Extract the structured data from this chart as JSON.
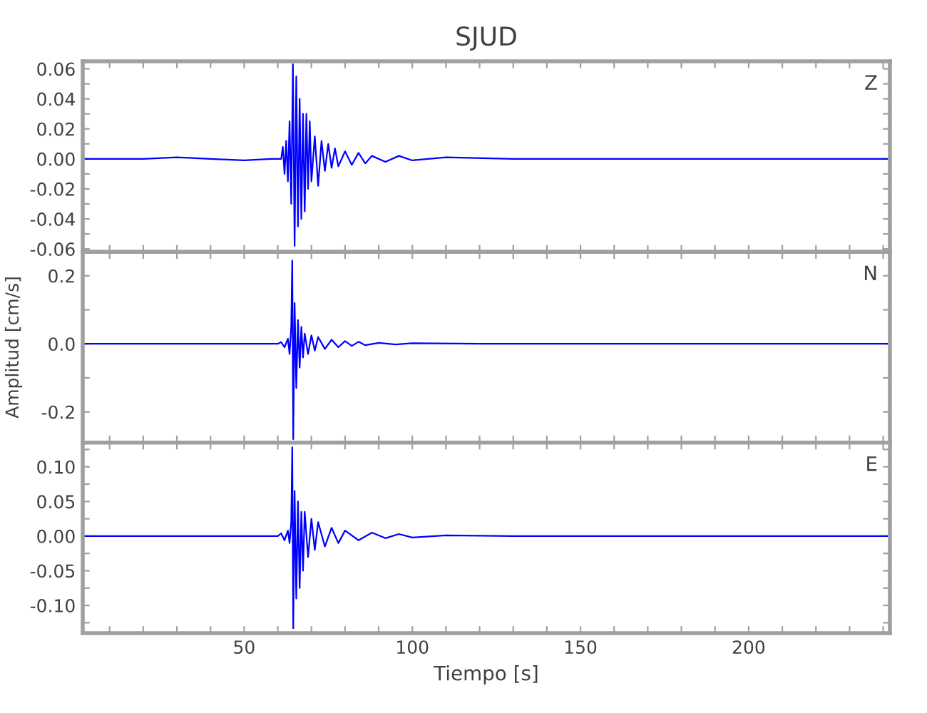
{
  "chart_data": [
    {
      "type": "line",
      "title": "SJUD",
      "annotations": [
        "Z"
      ],
      "tick_labels": "y",
      "grid": false,
      "legend": false,
      "xlim": [
        2,
        242
      ],
      "ylim": [
        -0.062,
        0.065
      ],
      "xticks": [
        {
          "value": 10,
          "label": null
        },
        {
          "value": 20,
          "label": null
        },
        {
          "value": 30,
          "label": null
        },
        {
          "value": 40,
          "label": null
        },
        {
          "value": 50,
          "label": null
        },
        {
          "value": 60,
          "label": null
        },
        {
          "value": 70,
          "label": null
        },
        {
          "value": 80,
          "label": null
        },
        {
          "value": 90,
          "label": null
        },
        {
          "value": 100,
          "label": null
        },
        {
          "value": 110,
          "label": null
        },
        {
          "value": 120,
          "label": null
        },
        {
          "value": 130,
          "label": null
        },
        {
          "value": 140,
          "label": null
        },
        {
          "value": 150,
          "label": null
        },
        {
          "value": 160,
          "label": null
        },
        {
          "value": 170,
          "label": null
        },
        {
          "value": 180,
          "label": null
        },
        {
          "value": 190,
          "label": null
        },
        {
          "value": 200,
          "label": null
        },
        {
          "value": 210,
          "label": null
        },
        {
          "value": 220,
          "label": null
        },
        {
          "value": 230,
          "label": null
        },
        {
          "value": 240,
          "label": null
        }
      ],
      "yticks": [
        {
          "value": -0.06,
          "label": "-0.06"
        },
        {
          "value": -0.05,
          "label": null
        },
        {
          "value": -0.04,
          "label": "-0.04"
        },
        {
          "value": -0.03,
          "label": null
        },
        {
          "value": -0.02,
          "label": "-0.02"
        },
        {
          "value": -0.01,
          "label": null
        },
        {
          "value": 0,
          "label": "0.00"
        },
        {
          "value": 0.01,
          "label": null
        },
        {
          "value": 0.02,
          "label": "0.02"
        },
        {
          "value": 0.03,
          "label": null
        },
        {
          "value": 0.04,
          "label": "0.04"
        },
        {
          "value": 0.05,
          "label": null
        },
        {
          "value": 0.06,
          "label": "0.06"
        }
      ],
      "series": [
        {
          "color": "#0000ff",
          "x": [
            2,
            10,
            20,
            30,
            40,
            50,
            58,
            61,
            61.5,
            62,
            62.5,
            63,
            63.5,
            64,
            64.5,
            65,
            65.5,
            66,
            66.5,
            67,
            67.5,
            68,
            68.5,
            69,
            69.5,
            70,
            71,
            72,
            73,
            74,
            75,
            76,
            77,
            78,
            80,
            82,
            84,
            86,
            88,
            92,
            96,
            100,
            110,
            130,
            150,
            200,
            242
          ],
          "values": [
            0,
            0,
            0,
            0.001,
            0,
            -0.001,
            0,
            0,
            0.008,
            -0.01,
            0.012,
            -0.015,
            0.025,
            -0.03,
            0.063,
            -0.058,
            0.055,
            -0.045,
            0.04,
            -0.04,
            0.03,
            -0.035,
            0.03,
            -0.02,
            0.025,
            -0.015,
            0.015,
            -0.018,
            0.012,
            -0.008,
            0.01,
            -0.006,
            0.007,
            -0.005,
            0.005,
            -0.004,
            0.004,
            -0.003,
            0.002,
            -0.002,
            0.002,
            -0.001,
            0.001,
            0,
            0,
            0,
            0
          ]
        }
      ]
    },
    {
      "type": "line",
      "ylabel": "Amplitud [cm/s]",
      "annotations": [
        "N"
      ],
      "tick_labels": "y",
      "grid": false,
      "legend": false,
      "xlim": [
        2,
        242
      ],
      "ylim": [
        -0.29,
        0.27
      ],
      "xticks": [
        {
          "value": 10,
          "label": null
        },
        {
          "value": 20,
          "label": null
        },
        {
          "value": 30,
          "label": null
        },
        {
          "value": 40,
          "label": null
        },
        {
          "value": 50,
          "label": null
        },
        {
          "value": 60,
          "label": null
        },
        {
          "value": 70,
          "label": null
        },
        {
          "value": 80,
          "label": null
        },
        {
          "value": 90,
          "label": null
        },
        {
          "value": 100,
          "label": null
        },
        {
          "value": 110,
          "label": null
        },
        {
          "value": 120,
          "label": null
        },
        {
          "value": 130,
          "label": null
        },
        {
          "value": 140,
          "label": null
        },
        {
          "value": 150,
          "label": null
        },
        {
          "value": 160,
          "label": null
        },
        {
          "value": 170,
          "label": null
        },
        {
          "value": 180,
          "label": null
        },
        {
          "value": 190,
          "label": null
        },
        {
          "value": 200,
          "label": null
        },
        {
          "value": 210,
          "label": null
        },
        {
          "value": 220,
          "label": null
        },
        {
          "value": 230,
          "label": null
        },
        {
          "value": 240,
          "label": null
        }
      ],
      "yticks": [
        {
          "value": -0.2,
          "label": "-0.2"
        },
        {
          "value": -0.1,
          "label": null
        },
        {
          "value": 0,
          "label": "0.0"
        },
        {
          "value": 0.1,
          "label": null
        },
        {
          "value": 0.2,
          "label": "0.2"
        }
      ],
      "series": [
        {
          "color": "#0000ff",
          "x": [
            2,
            30,
            60,
            61,
            62,
            63,
            63.5,
            64,
            64.3,
            64.6,
            65,
            65.5,
            66,
            66.5,
            67,
            67.5,
            68,
            69,
            70,
            71,
            72,
            74,
            76,
            78,
            80,
            82,
            84,
            86,
            90,
            95,
            100,
            120,
            242
          ],
          "values": [
            0,
            0,
            0,
            0.005,
            -0.01,
            0.015,
            -0.03,
            0.05,
            0.245,
            -0.28,
            0.12,
            -0.13,
            0.07,
            -0.07,
            0.05,
            -0.04,
            0.03,
            -0.03,
            0.025,
            -0.02,
            0.02,
            -0.015,
            0.012,
            -0.01,
            0.008,
            -0.006,
            0.006,
            -0.004,
            0.003,
            -0.002,
            0.002,
            0,
            0
          ]
        }
      ]
    },
    {
      "type": "line",
      "xlabel": "Tiempo [s]",
      "annotations": [
        "E"
      ],
      "grid": false,
      "legend": false,
      "xlim": [
        2,
        242
      ],
      "ylim": [
        -0.14,
        0.135
      ],
      "xticks": [
        {
          "value": 10,
          "label": null
        },
        {
          "value": 20,
          "label": null
        },
        {
          "value": 30,
          "label": null
        },
        {
          "value": 40,
          "label": null
        },
        {
          "value": 50,
          "label": "50"
        },
        {
          "value": 60,
          "label": null
        },
        {
          "value": 70,
          "label": null
        },
        {
          "value": 80,
          "label": null
        },
        {
          "value": 90,
          "label": null
        },
        {
          "value": 100,
          "label": "100"
        },
        {
          "value": 110,
          "label": null
        },
        {
          "value": 120,
          "label": null
        },
        {
          "value": 130,
          "label": null
        },
        {
          "value": 140,
          "label": null
        },
        {
          "value": 150,
          "label": "150"
        },
        {
          "value": 160,
          "label": null
        },
        {
          "value": 170,
          "label": null
        },
        {
          "value": 180,
          "label": null
        },
        {
          "value": 190,
          "label": null
        },
        {
          "value": 200,
          "label": "200"
        },
        {
          "value": 210,
          "label": null
        },
        {
          "value": 220,
          "label": null
        },
        {
          "value": 230,
          "label": null
        },
        {
          "value": 240,
          "label": null
        }
      ],
      "yticks": [
        {
          "value": -0.125,
          "label": null
        },
        {
          "value": -0.1,
          "label": "-0.10"
        },
        {
          "value": -0.075,
          "label": null
        },
        {
          "value": -0.05,
          "label": "-0.05"
        },
        {
          "value": -0.025,
          "label": null
        },
        {
          "value": 0,
          "label": "0.00"
        },
        {
          "value": 0.025,
          "label": null
        },
        {
          "value": 0.05,
          "label": "0.05"
        },
        {
          "value": 0.075,
          "label": null
        },
        {
          "value": 0.1,
          "label": "0.10"
        },
        {
          "value": 0.125,
          "label": null
        }
      ],
      "series": [
        {
          "color": "#0000ff",
          "x": [
            2,
            30,
            60,
            61,
            62,
            63,
            63.5,
            64,
            64.3,
            64.6,
            65,
            65.5,
            66,
            66.5,
            67,
            67.5,
            68,
            69,
            70,
            71,
            72,
            74,
            76,
            78,
            80,
            84,
            88,
            92,
            96,
            100,
            110,
            130,
            242
          ],
          "values": [
            0,
            0,
            0,
            0.004,
            -0.006,
            0.008,
            -0.01,
            0.02,
            0.128,
            -0.133,
            0.065,
            -0.09,
            0.05,
            -0.075,
            0.035,
            -0.05,
            0.035,
            -0.03,
            0.025,
            -0.02,
            0.02,
            -0.015,
            0.012,
            -0.01,
            0.008,
            -0.006,
            0.005,
            -0.003,
            0.003,
            -0.002,
            0.001,
            0,
            0
          ]
        }
      ]
    }
  ]
}
